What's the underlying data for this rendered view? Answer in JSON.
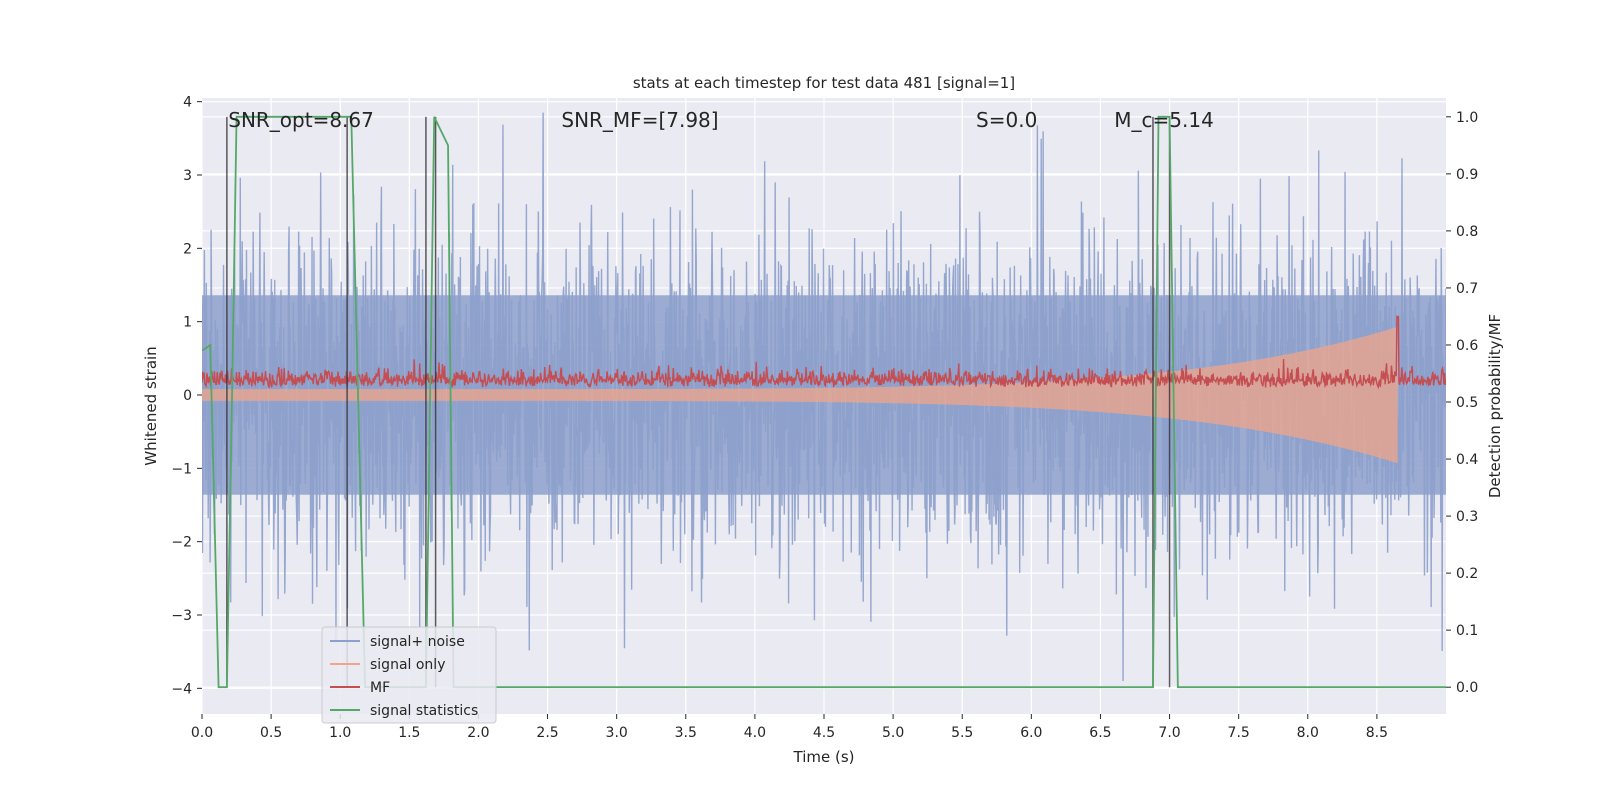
{
  "chart_data": {
    "type": "line",
    "title": "stats at each timestep for test data 481 [signal=1]",
    "xlabel": "Time (s)",
    "ylabel": "Whitened strain",
    "y2label": "Detection probability/MF",
    "xlim": [
      0.0,
      9.0
    ],
    "ylim": [
      -4.35,
      4.05
    ],
    "y2lim": [
      -0.047,
      1.033
    ],
    "xticks": [
      "0.0",
      "0.5",
      "1.0",
      "1.5",
      "2.0",
      "2.5",
      "3.0",
      "3.5",
      "4.0",
      "4.5",
      "5.0",
      "5.5",
      "6.0",
      "6.5",
      "7.0",
      "7.5",
      "8.0",
      "8.5"
    ],
    "yticks": [
      "−4",
      "−3",
      "−2",
      "−1",
      "0",
      "1",
      "2",
      "3",
      "4"
    ],
    "y2ticks": [
      "0.0",
      "0.1",
      "0.2",
      "0.3",
      "0.4",
      "0.5",
      "0.6",
      "0.7",
      "0.8",
      "0.9",
      "1.0"
    ],
    "grid": true,
    "legend_position": "lower-left",
    "annotations": [
      {
        "text": "SNR_opt=8.67",
        "x": 0.19,
        "y": 3.75
      },
      {
        "text": "SNR_MF=[7.98]",
        "x": 2.6,
        "y": 3.75
      },
      {
        "text": "S=0.0",
        "x": 5.6,
        "y": 3.75
      },
      {
        "text": "M_c=5.14",
        "x": 6.6,
        "y": 3.75
      }
    ],
    "series": [
      {
        "name": "signal+ noise",
        "color": "#8da0cb",
        "axis": "left",
        "description_range": [
          -3.9,
          3.9
        ],
        "band_core": 1.7
      },
      {
        "name": "signal only",
        "color": "#f0a58a",
        "axis": "left",
        "chirp_end": 8.65,
        "chirp_peak": 0.85
      },
      {
        "name": "MF",
        "color": "#c44e52",
        "axis": "right",
        "baseline": 0.53,
        "spike_x": 8.65,
        "spike_y": 0.65
      },
      {
        "name": "signal statistics",
        "color": "#55a868",
        "axis": "right",
        "x": [
          0.0,
          0.06,
          0.12,
          0.18,
          0.22,
          0.25,
          1.05,
          1.08,
          1.18,
          1.22,
          1.62,
          1.68,
          1.72,
          1.78,
          1.82,
          6.88,
          6.92,
          7.0,
          7.06,
          9.0
        ],
        "y": [
          0.59,
          0.6,
          0.0,
          0.0,
          0.55,
          1.0,
          1.0,
          1.0,
          0.0,
          0.0,
          0.0,
          1.0,
          0.98,
          0.95,
          0.0,
          0.0,
          1.0,
          1.0,
          0.0,
          0.0
        ]
      }
    ],
    "vertical_markers": [
      0.18,
      1.05,
      1.62,
      1.69,
      6.88,
      7.0
    ]
  }
}
